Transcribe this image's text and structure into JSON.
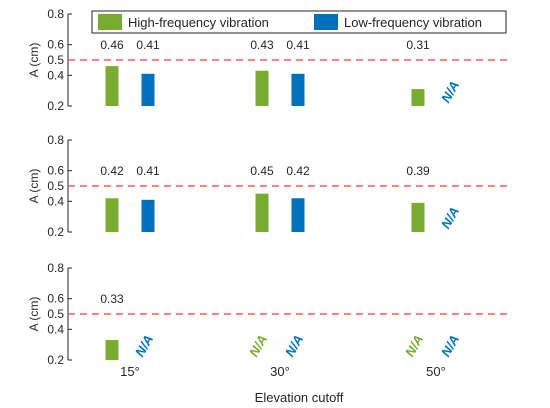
{
  "chart_data": {
    "type": "bar",
    "xlabel": "Elevation cutoff",
    "ylabel": "A (cm)",
    "yticks": [
      "0.2",
      "0.4",
      "0.5",
      "0.6",
      "0.8"
    ],
    "ylim": [
      0.2,
      0.8
    ],
    "reference_line": 0.5,
    "legend_position": "top",
    "na_label": "N/A",
    "categories": [
      "15°",
      "30°",
      "50°"
    ],
    "series": [
      {
        "name": "High-frequency vibration",
        "color": "#77ac30"
      },
      {
        "name": "Low-frequency vibration",
        "color": "#0072bd"
      }
    ],
    "panels": [
      {
        "high": [
          0.46,
          0.43,
          0.31
        ],
        "low": [
          0.41,
          0.41,
          null
        ]
      },
      {
        "high": [
          0.42,
          0.45,
          0.39
        ],
        "low": [
          0.41,
          0.42,
          null
        ]
      },
      {
        "high": [
          0.33,
          null,
          null
        ],
        "low": [
          null,
          null,
          null
        ]
      }
    ],
    "colors": {
      "reference": "#e8403a",
      "axis": "#262626",
      "value_text": "#262626"
    }
  }
}
